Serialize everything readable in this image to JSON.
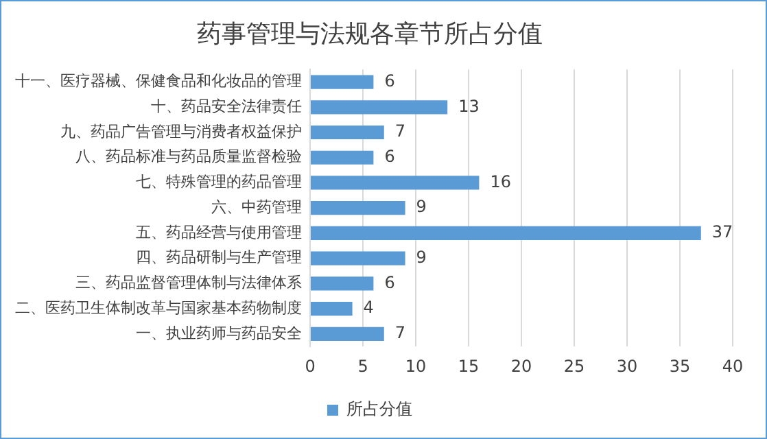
{
  "chart_data": {
    "type": "bar",
    "orientation": "horizontal",
    "title": "药事管理与法规各章节所占分值",
    "categories": [
      "十一、医疗器械、保健食品和化妆品的管理",
      "十、药品安全法律责任",
      "九、药品广告管理与消费者权益保护",
      "八、药品标准与药品质量监督检验",
      "七、特殊管理的药品管理",
      "六、中药管理",
      "五、药品经营与使用管理",
      "四、药品研制与生产管理",
      "三、药品监督管理体制与法律体系",
      "二、医药卫生体制改革与国家基本药物制度",
      "一、执业药师与药品安全"
    ],
    "series": [
      {
        "name": "所占分值",
        "color": "#5b9bd5",
        "values": [
          6,
          13,
          7,
          6,
          16,
          9,
          37,
          9,
          6,
          4,
          7
        ]
      }
    ],
    "xlim": [
      0,
      40
    ],
    "xticks": [
      0,
      5,
      10,
      15,
      20,
      25,
      30,
      35,
      40
    ],
    "grid": "x",
    "legend": "bottom",
    "data_labels": true
  }
}
